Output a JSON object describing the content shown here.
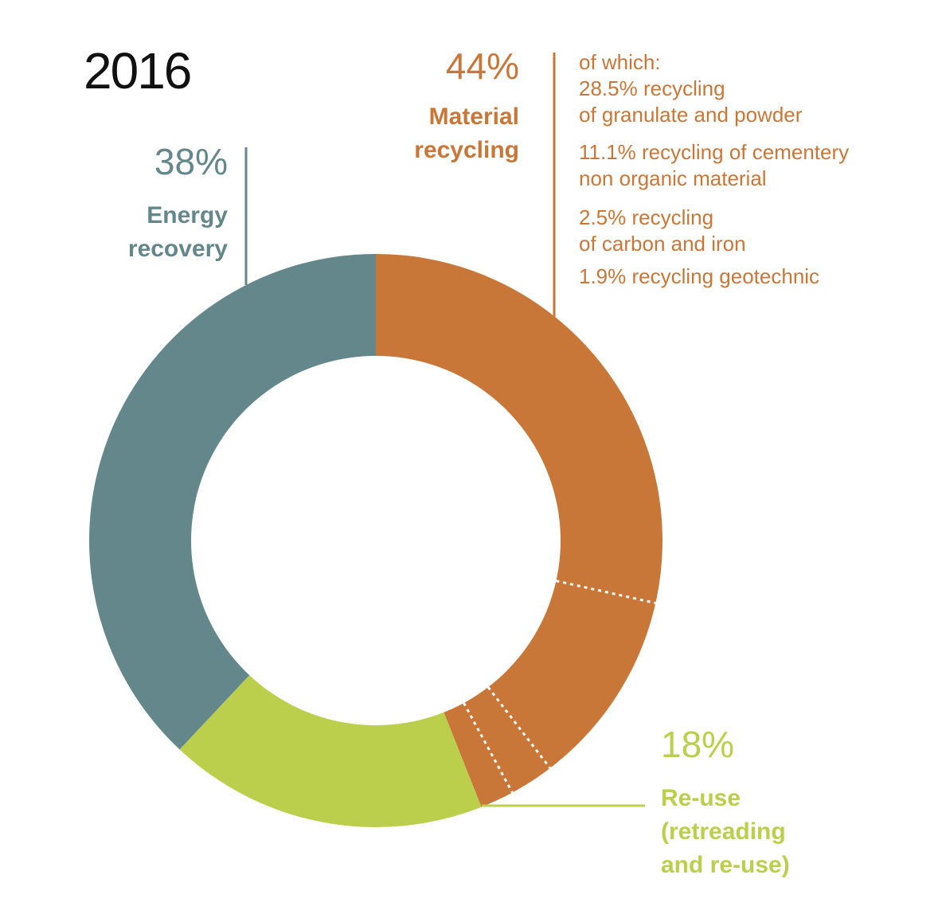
{
  "chart_data": {
    "type": "pie",
    "title": "2016",
    "donut": true,
    "slices": [
      {
        "label": "Material recycling",
        "value": 44,
        "percent_text": "44%",
        "color": "#c97739"
      },
      {
        "label": "Re-use (retreading and re-use)",
        "value": 18,
        "percent_text": "18%",
        "color": "#bccf4d"
      },
      {
        "label": "Energy recovery",
        "value": 38,
        "percent_text": "38%",
        "color": "#63878b"
      }
    ],
    "material_recycling_breakdown": [
      {
        "label": "recycling of granulate and powder",
        "value": 28.5
      },
      {
        "label": "recycling of cementery non organic material",
        "value": 11.1
      },
      {
        "label": "recycling of carbon and iron",
        "value": 2.5
      },
      {
        "label": "recycling geotechnic",
        "value": 1.9
      }
    ]
  },
  "labels": {
    "year": "2016",
    "energy": {
      "pct": "38%",
      "line1": "Energy",
      "line2": "recovery"
    },
    "material": {
      "pct": "44%",
      "line1": "Material",
      "line2": "recycling"
    },
    "reuse": {
      "pct": "18%",
      "line1": "Re-use",
      "line2": "(retreading",
      "line3": "and re-use)"
    },
    "breakdown": {
      "intro": "of which:",
      "a1": "28.5% recycling",
      "a2": "of granulate and powder",
      "b1": "11.1% recycling of cementery",
      "b2": "non organic material",
      "c1": "2.5% recycling",
      "c2": "of carbon and iron",
      "d1": "1.9% recycling geotechnic"
    }
  }
}
